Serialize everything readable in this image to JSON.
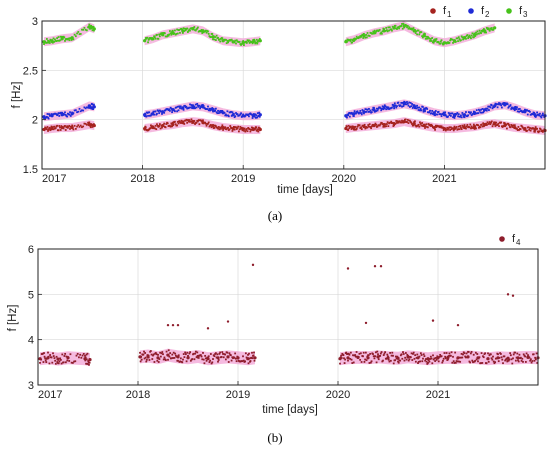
{
  "chart_data": [
    {
      "type": "scatter",
      "panel_label": "(a)",
      "xlabel": "time [days]",
      "ylabel": "f [Hz]",
      "xlim": [
        2017.0,
        2022.0
      ],
      "ylim": [
        1.5,
        3.0
      ],
      "x_ticks": [
        2017,
        2018,
        2019,
        2020,
        2021
      ],
      "x_tick_labels": [
        "2017",
        "2018",
        "2019",
        "2020",
        "2021"
      ],
      "y_ticks": [
        1.5,
        2,
        2.5,
        3
      ],
      "y_tick_labels": [
        "1.5",
        "2",
        "2.5",
        "3"
      ],
      "grid": true,
      "legend_position": "top-right",
      "series": [
        {
          "name": "f",
          "subscript": "1",
          "color": "#a5231f",
          "halo": "#f2a3d6",
          "x": [
            2017.02,
            2017.1,
            2017.2,
            2017.3,
            2017.47,
            2017.52,
            2018.02,
            2018.1,
            2018.2,
            2018.3,
            2018.4,
            2018.5,
            2018.6,
            2018.7,
            2018.8,
            2018.9,
            2019.0,
            2019.1,
            2019.17,
            2020.02,
            2020.1,
            2020.2,
            2020.3,
            2020.4,
            2020.5,
            2020.6,
            2020.7,
            2020.8,
            2020.9,
            2021.0,
            2021.1,
            2021.2,
            2021.3,
            2021.4,
            2021.5,
            2021.6,
            2021.7,
            2021.8,
            2021.9,
            2022.0
          ],
          "y": [
            1.9,
            1.91,
            1.92,
            1.92,
            1.95,
            1.94,
            1.91,
            1.92,
            1.94,
            1.95,
            1.97,
            1.98,
            1.97,
            1.94,
            1.92,
            1.91,
            1.9,
            1.9,
            1.9,
            1.91,
            1.92,
            1.93,
            1.94,
            1.95,
            1.96,
            1.98,
            1.96,
            1.94,
            1.92,
            1.91,
            1.91,
            1.92,
            1.93,
            1.95,
            1.96,
            1.94,
            1.92,
            1.91,
            1.9,
            1.89
          ]
        },
        {
          "name": "f",
          "subscript": "2",
          "color": "#1f2bd6",
          "halo": "#f2a3d6",
          "x": [
            2017.02,
            2017.1,
            2017.2,
            2017.3,
            2017.47,
            2017.52,
            2018.02,
            2018.1,
            2018.2,
            2018.3,
            2018.4,
            2018.5,
            2018.6,
            2018.7,
            2018.8,
            2018.9,
            2019.0,
            2019.1,
            2019.17,
            2020.02,
            2020.1,
            2020.2,
            2020.3,
            2020.4,
            2020.5,
            2020.6,
            2020.7,
            2020.8,
            2020.9,
            2021.0,
            2021.1,
            2021.2,
            2021.3,
            2021.4,
            2021.5,
            2021.6,
            2021.7,
            2021.8,
            2021.9,
            2022.0
          ],
          "y": [
            2.03,
            2.04,
            2.05,
            2.06,
            2.14,
            2.13,
            2.05,
            2.06,
            2.08,
            2.1,
            2.12,
            2.14,
            2.13,
            2.1,
            2.07,
            2.05,
            2.04,
            2.04,
            2.05,
            2.04,
            2.06,
            2.08,
            2.1,
            2.12,
            2.14,
            2.16,
            2.14,
            2.1,
            2.07,
            2.05,
            2.04,
            2.05,
            2.07,
            2.1,
            2.14,
            2.15,
            2.12,
            2.08,
            2.05,
            2.04
          ]
        },
        {
          "name": "f",
          "subscript": "3",
          "color": "#46c21a",
          "halo": "#f2a3d6",
          "x": [
            2017.02,
            2017.1,
            2017.2,
            2017.3,
            2017.47,
            2017.52,
            2018.02,
            2018.1,
            2018.2,
            2018.3,
            2018.4,
            2018.5,
            2018.6,
            2018.7,
            2018.8,
            2018.9,
            2019.0,
            2019.1,
            2019.17,
            2020.02,
            2020.1,
            2020.2,
            2020.3,
            2020.4,
            2020.5,
            2020.6,
            2020.7,
            2020.8,
            2020.9,
            2021.0,
            2021.1,
            2021.2,
            2021.3,
            2021.4,
            2021.5
          ],
          "y": [
            2.79,
            2.8,
            2.82,
            2.83,
            2.94,
            2.92,
            2.8,
            2.82,
            2.86,
            2.88,
            2.9,
            2.92,
            2.9,
            2.84,
            2.8,
            2.79,
            2.78,
            2.79,
            2.8,
            2.79,
            2.81,
            2.85,
            2.88,
            2.9,
            2.93,
            2.95,
            2.9,
            2.85,
            2.8,
            2.78,
            2.8,
            2.83,
            2.86,
            2.9,
            2.93
          ]
        }
      ]
    },
    {
      "type": "scatter",
      "panel_label": "(b)",
      "xlabel": "time [days]",
      "ylabel": "f [Hz]",
      "xlim": [
        2017.0,
        2022.0
      ],
      "ylim": [
        3,
        6
      ],
      "x_ticks": [
        2017,
        2018,
        2019,
        2020,
        2021
      ],
      "x_tick_labels": [
        "2017",
        "2018",
        "2019",
        "2020",
        "2021"
      ],
      "y_ticks": [
        3,
        4,
        5,
        6
      ],
      "y_tick_labels": [
        "3",
        "4",
        "5",
        "6"
      ],
      "grid": true,
      "legend_position": "top-right",
      "series": [
        {
          "name": "f",
          "subscript": "4",
          "color": "#8e1d2c",
          "halo": "#f2a3d6",
          "x": [
            2017.02,
            2017.1,
            2017.2,
            2017.3,
            2017.47,
            2017.52,
            2018.02,
            2018.1,
            2018.2,
            2018.3,
            2018.4,
            2018.5,
            2018.6,
            2018.7,
            2018.8,
            2018.9,
            2019.0,
            2019.1,
            2019.17,
            2020.02,
            2020.1,
            2020.2,
            2020.3,
            2020.4,
            2020.5,
            2020.6,
            2020.7,
            2020.8,
            2020.9,
            2021.0,
            2021.1,
            2021.2,
            2021.3,
            2021.4,
            2021.5,
            2021.6,
            2021.7,
            2021.8,
            2021.9,
            2022.0
          ],
          "y": [
            3.58,
            3.6,
            3.57,
            3.6,
            3.58,
            3.56,
            3.62,
            3.64,
            3.6,
            3.66,
            3.62,
            3.6,
            3.63,
            3.58,
            3.6,
            3.62,
            3.6,
            3.58,
            3.6,
            3.58,
            3.6,
            3.61,
            3.6,
            3.62,
            3.6,
            3.59,
            3.62,
            3.6,
            3.58,
            3.6,
            3.61,
            3.6,
            3.62,
            3.6,
            3.58,
            3.6,
            3.59,
            3.6,
            3.61,
            3.6
          ]
        }
      ],
      "outliers": {
        "x": [
          2018.3,
          2018.35,
          2018.4,
          2018.7,
          2018.9,
          2019.15,
          2020.1,
          2020.28,
          2020.37,
          2020.43,
          2020.95,
          2021.2,
          2021.7,
          2021.75
        ],
        "y": [
          4.32,
          4.32,
          4.32,
          4.25,
          4.4,
          5.65,
          5.57,
          4.37,
          5.62,
          5.62,
          4.42,
          4.32,
          5.0,
          4.97
        ]
      }
    }
  ]
}
